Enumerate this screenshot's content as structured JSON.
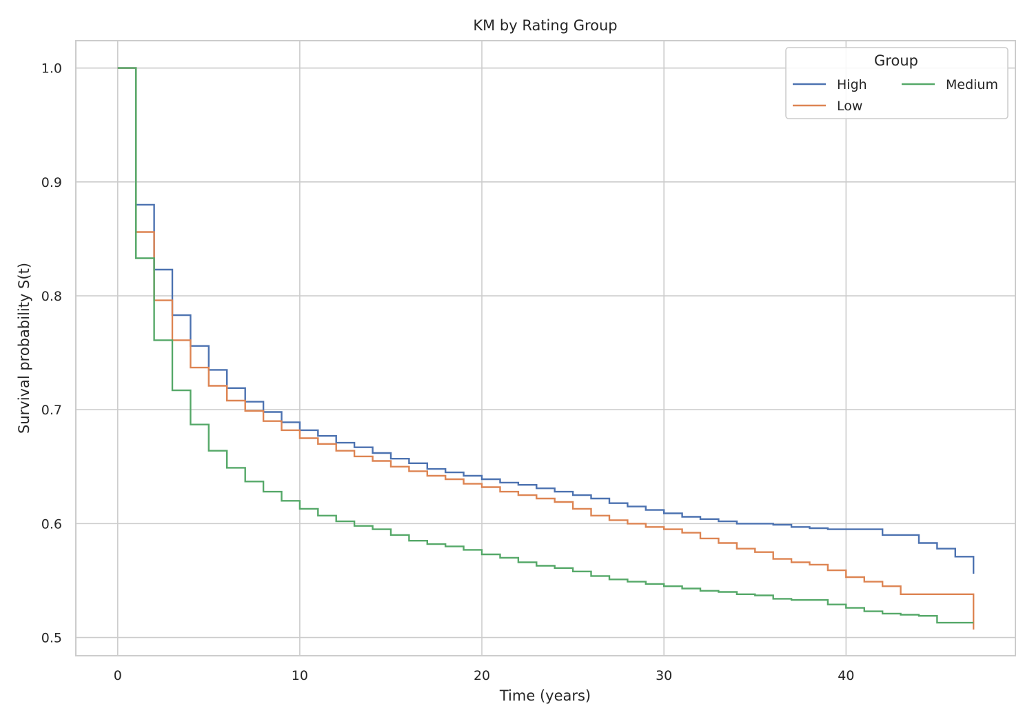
{
  "chart_data": {
    "type": "line",
    "step": "post",
    "title": "KM by Rating Group",
    "xlabel": "Time (years)",
    "ylabel": "Survival probability S(t)",
    "xlim": [
      -2.3,
      49.3
    ],
    "ylim": [
      0.484,
      1.024
    ],
    "xticks": [
      0,
      10,
      20,
      30,
      40
    ],
    "xtick_labels": [
      "0",
      "10",
      "20",
      "30",
      "40"
    ],
    "yticks": [
      0.5,
      0.6,
      0.7,
      0.8,
      0.9,
      1.0
    ],
    "ytick_labels": [
      "0.5",
      "0.6",
      "0.7",
      "0.8",
      "0.9",
      "1.0"
    ],
    "grid": true,
    "legend": {
      "title": "Group",
      "placement": "top-right",
      "columns": 2
    },
    "x": [
      0,
      1,
      2,
      3,
      4,
      5,
      6,
      7,
      8,
      9,
      10,
      11,
      12,
      13,
      14,
      15,
      16,
      17,
      18,
      19,
      20,
      21,
      22,
      23,
      24,
      25,
      26,
      27,
      28,
      29,
      30,
      31,
      32,
      33,
      34,
      35,
      36,
      37,
      38,
      39,
      40,
      41,
      42,
      43,
      44,
      45,
      46,
      47
    ],
    "series": [
      {
        "name": "High",
        "color": "#4c72b0",
        "values": [
          1.0,
          0.88,
          0.823,
          0.783,
          0.756,
          0.735,
          0.719,
          0.707,
          0.698,
          0.689,
          0.682,
          0.677,
          0.671,
          0.667,
          0.662,
          0.657,
          0.653,
          0.648,
          0.645,
          0.642,
          0.639,
          0.636,
          0.634,
          0.631,
          0.628,
          0.625,
          0.622,
          0.618,
          0.615,
          0.612,
          0.609,
          0.606,
          0.604,
          0.602,
          0.6,
          0.6,
          0.599,
          0.597,
          0.596,
          0.595,
          0.595,
          0.595,
          0.59,
          0.59,
          0.583,
          0.578,
          0.571,
          0.556
        ]
      },
      {
        "name": "Low",
        "color": "#dd8452",
        "values": [
          1.0,
          0.856,
          0.796,
          0.761,
          0.737,
          0.721,
          0.708,
          0.699,
          0.69,
          0.682,
          0.675,
          0.67,
          0.664,
          0.659,
          0.655,
          0.65,
          0.646,
          0.642,
          0.639,
          0.635,
          0.632,
          0.628,
          0.625,
          0.622,
          0.619,
          0.613,
          0.607,
          0.603,
          0.6,
          0.597,
          0.595,
          0.592,
          0.587,
          0.583,
          0.578,
          0.575,
          0.569,
          0.566,
          0.564,
          0.559,
          0.553,
          0.549,
          0.545,
          0.538,
          0.538,
          0.538,
          0.538,
          0.507
        ]
      },
      {
        "name": "Medium",
        "color": "#55a868",
        "values": [
          1.0,
          0.833,
          0.761,
          0.717,
          0.687,
          0.664,
          0.649,
          0.637,
          0.628,
          0.62,
          0.613,
          0.607,
          0.602,
          0.598,
          0.595,
          0.59,
          0.585,
          0.582,
          0.58,
          0.577,
          0.573,
          0.57,
          0.566,
          0.563,
          0.561,
          0.558,
          0.554,
          0.551,
          0.549,
          0.547,
          0.545,
          0.543,
          0.541,
          0.54,
          0.538,
          0.537,
          0.534,
          0.533,
          0.533,
          0.529,
          0.526,
          0.523,
          0.521,
          0.52,
          0.519,
          0.513,
          0.513,
          0.513
        ]
      }
    ]
  }
}
